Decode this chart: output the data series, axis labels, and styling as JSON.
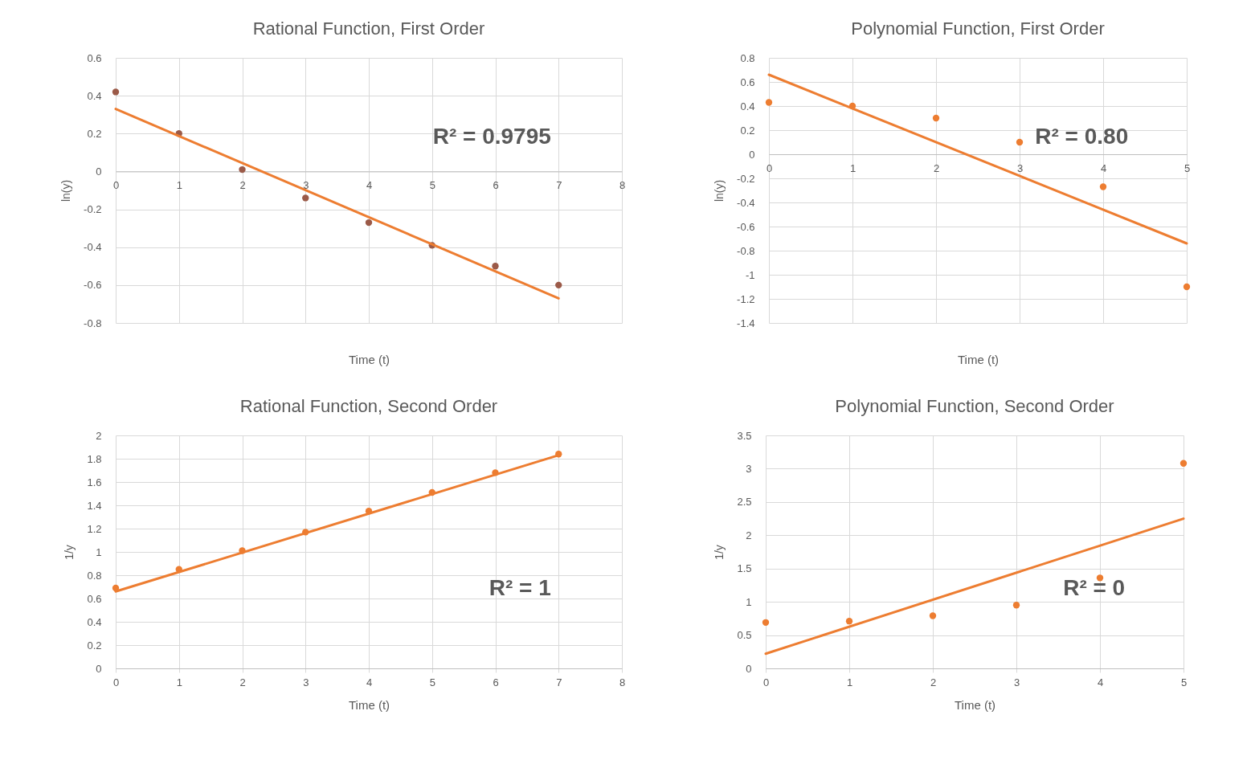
{
  "chart_data": [
    {
      "type": "scatter",
      "title": "Rational Function, First Order",
      "xlabel": "Time (t)",
      "ylabel": "ln(y)",
      "x": [
        0,
        1,
        2,
        3,
        4,
        5,
        6,
        7
      ],
      "xlim": [
        0,
        8
      ],
      "xticks": [
        0,
        1,
        2,
        3,
        4,
        5,
        6,
        7,
        8
      ],
      "ylim": [
        -0.8,
        0.6
      ],
      "yticks": [
        -0.8,
        -0.6,
        -0.4,
        -0.2,
        0,
        0.2,
        0.4,
        0.6
      ],
      "grid": true,
      "annotations": [
        "R² = 0.9795"
      ],
      "series": [
        {
          "type": "scatter",
          "marker": "circle",
          "color": "#9b5a48",
          "values": [
            0.42,
            0.2,
            0.01,
            -0.14,
            -0.27,
            -0.39,
            -0.5,
            -0.6
          ]
        },
        {
          "type": "line",
          "marker": "none",
          "color": "#ed7d31",
          "x": [
            0,
            7
          ],
          "values": [
            0.33,
            -0.67
          ]
        }
      ]
    },
    {
      "type": "scatter",
      "title": "Polynomial Function, First Order",
      "xlabel": "Time (t)",
      "ylabel": "ln(y)",
      "x": [
        0,
        1,
        2,
        3,
        4,
        5
      ],
      "xlim": [
        0,
        5
      ],
      "xticks": [
        0,
        1,
        2,
        3,
        4,
        5
      ],
      "ylim": [
        -1.4,
        0.8
      ],
      "yticks": [
        -1.4,
        -1.2,
        -1,
        -0.8,
        -0.6,
        -0.4,
        -0.2,
        0,
        0.2,
        0.4,
        0.6,
        0.8
      ],
      "grid": true,
      "annotations": [
        "R² = 0.80"
      ],
      "series": [
        {
          "type": "scatter",
          "marker": "circle",
          "color": "#ed7d31",
          "values": [
            0.43,
            0.4,
            0.3,
            0.1,
            -0.27,
            -1.1
          ]
        },
        {
          "type": "line",
          "marker": "none",
          "color": "#ed7d31",
          "x": [
            0,
            5
          ],
          "values": [
            0.66,
            -0.74
          ]
        }
      ]
    },
    {
      "type": "scatter",
      "title": "Rational Function, Second Order",
      "xlabel": "Time (t)",
      "ylabel": "1/y",
      "x": [
        0,
        1,
        2,
        3,
        4,
        5,
        6,
        7
      ],
      "xlim": [
        0,
        8
      ],
      "xticks": [
        0,
        1,
        2,
        3,
        4,
        5,
        6,
        7,
        8
      ],
      "ylim": [
        0,
        2
      ],
      "yticks": [
        0,
        0.2,
        0.4,
        0.6,
        0.8,
        1,
        1.2,
        1.4,
        1.6,
        1.8,
        2
      ],
      "grid": true,
      "annotations": [
        "R² = 1"
      ],
      "series": [
        {
          "type": "scatter",
          "marker": "circle",
          "color": "#ed7d31",
          "values": [
            0.69,
            0.85,
            1.01,
            1.17,
            1.35,
            1.51,
            1.68,
            1.84
          ]
        },
        {
          "type": "line",
          "marker": "none",
          "color": "#ed7d31",
          "x": [
            0,
            7
          ],
          "values": [
            0.66,
            1.83
          ]
        }
      ]
    },
    {
      "type": "scatter",
      "title": "Polynomial Function, Second Order",
      "xlabel": "Time (t)",
      "ylabel": "1/y",
      "x": [
        0,
        1,
        2,
        3,
        4,
        5
      ],
      "xlim": [
        0,
        5
      ],
      "xticks": [
        0,
        1,
        2,
        3,
        4,
        5
      ],
      "ylim": [
        0,
        3.5
      ],
      "yticks": [
        0,
        0.5,
        1,
        1.5,
        2,
        2.5,
        3,
        3.5
      ],
      "grid": true,
      "annotations": [
        "R² = 0"
      ],
      "series": [
        {
          "type": "scatter",
          "marker": "circle",
          "color": "#ed7d31",
          "values": [
            0.69,
            0.71,
            0.79,
            0.95,
            1.36,
            3.08
          ]
        },
        {
          "type": "line",
          "marker": "none",
          "color": "#ed7d31",
          "x": [
            0,
            5
          ],
          "values": [
            0.22,
            2.25
          ]
        }
      ]
    }
  ]
}
